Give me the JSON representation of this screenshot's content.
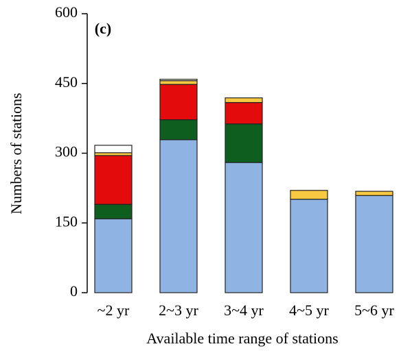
{
  "chart_data": {
    "type": "stacked_bar",
    "title": "(c)",
    "x_label": "Available time range of stations",
    "y_label": "Numbers of stations",
    "categories": [
      "~2 yr",
      "2~3 yr",
      "3~4 yr",
      "4~5 yr",
      "5~6 yr"
    ],
    "series": [
      {
        "color": "#8fb4e3",
        "values": [
          159,
          329,
          280,
          201,
          209
        ]
      },
      {
        "color": "#0d5e1f",
        "values": [
          31,
          43,
          83,
          0,
          0
        ]
      },
      {
        "color": "#e30b0b",
        "values": [
          105,
          76,
          46,
          0,
          0
        ]
      },
      {
        "color": "#f7c842",
        "values": [
          6,
          8,
          10,
          19,
          9
        ]
      },
      {
        "color": "#ffffff",
        "values": [
          16,
          3,
          0,
          0,
          0
        ]
      }
    ],
    "ylim": [
      0,
      600
    ],
    "yticks": [
      0,
      150,
      300,
      450,
      600
    ]
  }
}
